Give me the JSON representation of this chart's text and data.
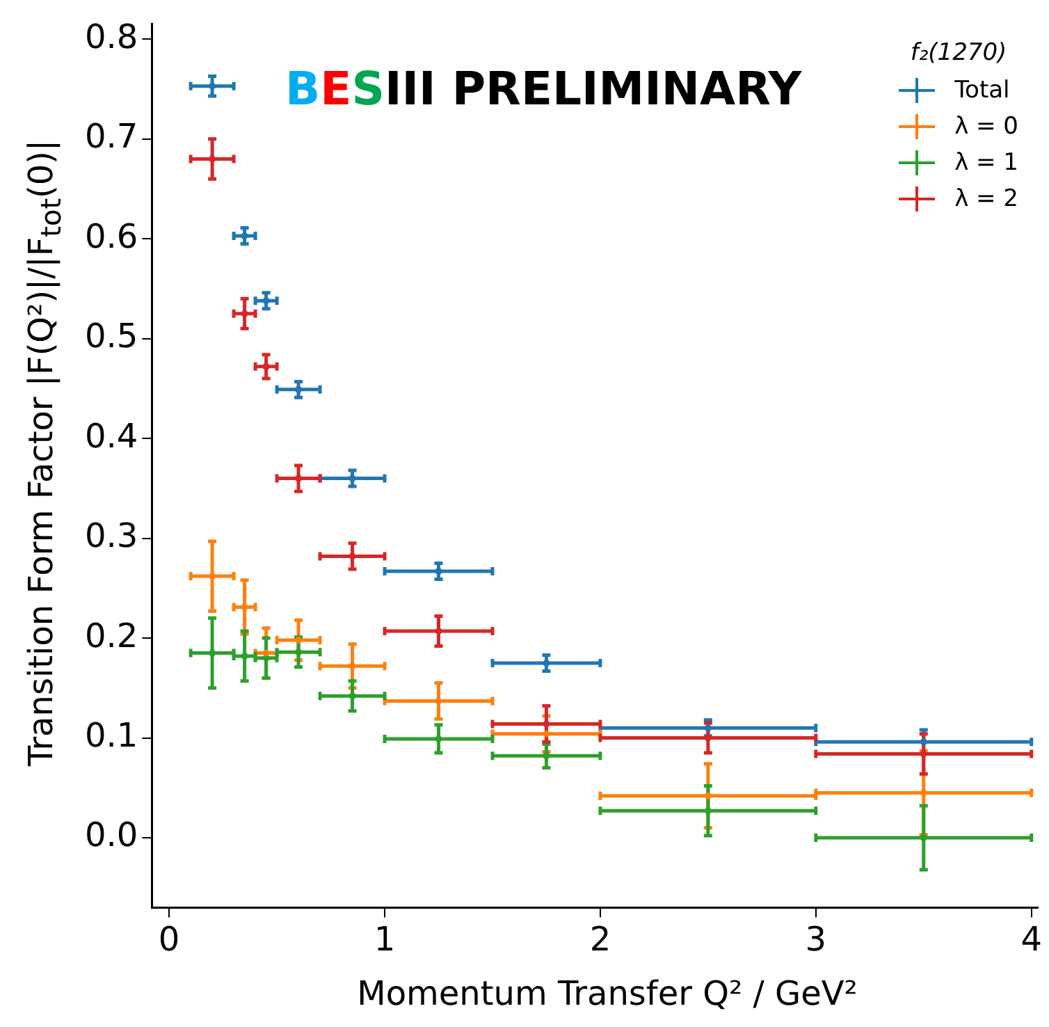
{
  "chart_data": {
    "type": "scatter",
    "xlabel": "Momentum Transfer Q² / GeV²",
    "ylabel": "Transition Form Factor |F(Q²)|/|F$_{tot}$(0)|",
    "legend_title": "f₂(1270)",
    "legend": "top right",
    "grid": false,
    "annotations": [
      "BESIII PRELIMINARY"
    ],
    "xlim": [
      -0.08,
      4.03
    ],
    "ylim": [
      -0.07,
      0.815
    ],
    "xticks": [
      0,
      1,
      2,
      3,
      4
    ],
    "yticks": [
      {
        "value": 0,
        "label": "0.0"
      },
      0.1,
      0.2,
      0.3,
      0.4,
      0.5,
      0.6,
      0.7,
      0.8
    ],
    "x": [
      0.2,
      0.35,
      0.45,
      0.6,
      0.85,
      1.25,
      1.75,
      2.5,
      3.5
    ],
    "series": [
      {
        "name": "Total",
        "color": "#1f77b4",
        "values": [
          0.753,
          0.603,
          0.538,
          0.449,
          0.36,
          0.267,
          0.175,
          0.11,
          0.096
        ],
        "errors": [
          0.01,
          0.008,
          0.008,
          0.008,
          0.008,
          0.008,
          0.008,
          0.008,
          0.012
        ],
        "xerrors": [
          0.1,
          0.05,
          0.05,
          0.1,
          0.15,
          0.25,
          0.25,
          0.5,
          0.5
        ]
      },
      {
        "name": "λ = 0",
        "color": "#ff7f0e",
        "values": [
          0.262,
          0.231,
          0.185,
          0.198,
          0.172,
          0.137,
          0.104,
          0.042,
          0.045
        ],
        "errors": [
          0.035,
          0.027,
          0.025,
          0.02,
          0.022,
          0.018,
          0.018,
          0.032,
          0.042
        ],
        "xerrors": [
          0.1,
          0.05,
          0.05,
          0.1,
          0.15,
          0.25,
          0.25,
          0.5,
          0.5
        ]
      },
      {
        "name": "λ = 1",
        "color": "#2ca02c",
        "values": [
          0.185,
          0.182,
          0.18,
          0.186,
          0.142,
          0.099,
          0.082,
          0.027,
          0.0
        ],
        "errors": [
          0.035,
          0.025,
          0.02,
          0.015,
          0.015,
          0.014,
          0.012,
          0.025,
          0.032
        ],
        "xerrors": [
          0.1,
          0.05,
          0.05,
          0.1,
          0.15,
          0.25,
          0.25,
          0.5,
          0.5
        ]
      },
      {
        "name": "λ = 2",
        "color": "#d62728",
        "values": [
          0.68,
          0.525,
          0.472,
          0.36,
          0.282,
          0.207,
          0.114,
          0.1,
          0.084
        ],
        "errors": [
          0.02,
          0.015,
          0.012,
          0.013,
          0.013,
          0.015,
          0.018,
          0.015,
          0.02
        ],
        "xerrors": [
          0.1,
          0.05,
          0.05,
          0.1,
          0.15,
          0.25,
          0.25,
          0.5,
          0.5
        ]
      }
    ]
  }
}
